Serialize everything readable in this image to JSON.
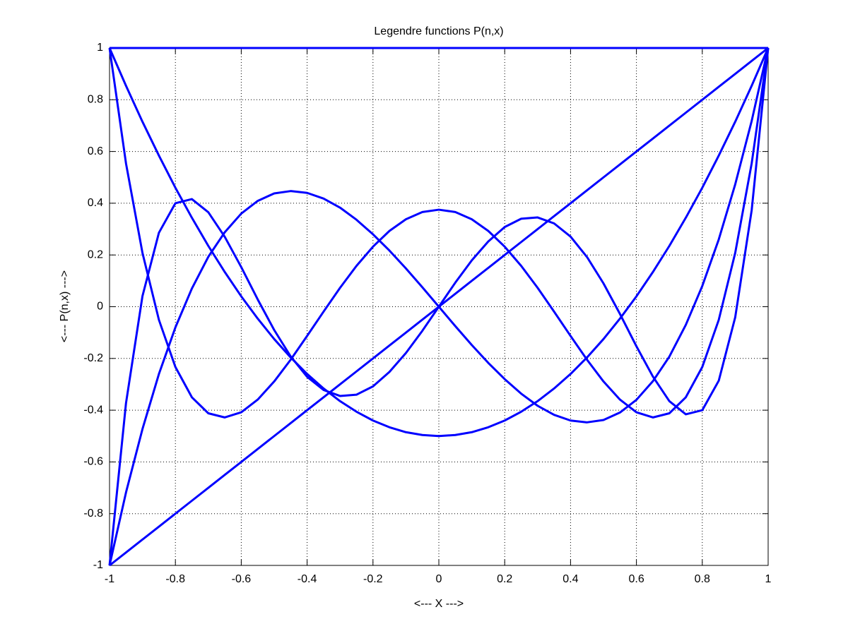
{
  "chart_data": {
    "type": "line",
    "title": "Legendre functions P(n,x)",
    "x_label": "<--- X --->",
    "y_label": "<--- P(n,x) --->",
    "x": [
      -1,
      -0.95,
      -0.9,
      -0.85,
      -0.8,
      -0.75,
      -0.7,
      -0.65,
      -0.6,
      -0.55,
      -0.5,
      -0.45,
      -0.4,
      -0.35,
      -0.3,
      -0.25,
      -0.2,
      -0.15,
      -0.1,
      -0.05,
      0,
      0.05,
      0.1,
      0.15,
      0.2,
      0.25,
      0.3,
      0.35,
      0.4,
      0.45,
      0.5,
      0.55,
      0.6,
      0.65,
      0.7,
      0.75,
      0.8,
      0.85,
      0.9,
      0.95,
      1
    ],
    "series": [
      {
        "color": "#0000ff",
        "values": [
          1,
          1,
          1,
          1,
          1,
          1,
          1,
          1,
          1,
          1,
          1,
          1,
          1,
          1,
          1,
          1,
          1,
          1,
          1,
          1,
          1,
          1,
          1,
          1,
          1,
          1,
          1,
          1,
          1,
          1,
          1,
          1,
          1,
          1,
          1,
          1,
          1,
          1,
          1,
          1,
          1
        ]
      },
      {
        "color": "#0000ff",
        "values": [
          -1,
          -0.95,
          -0.9,
          -0.85,
          -0.8,
          -0.75,
          -0.7,
          -0.65,
          -0.6,
          -0.55,
          -0.5,
          -0.45,
          -0.4,
          -0.35,
          -0.3,
          -0.25,
          -0.2,
          -0.15,
          -0.1,
          -0.05,
          0,
          0.05,
          0.1,
          0.15,
          0.2,
          0.25,
          0.3,
          0.35,
          0.4,
          0.45,
          0.5,
          0.55,
          0.6,
          0.65,
          0.7,
          0.75,
          0.8,
          0.85,
          0.9,
          0.95,
          1
        ]
      },
      {
        "color": "#0000ff",
        "values": [
          1,
          0.854,
          0.715,
          0.584,
          0.46,
          0.344,
          0.235,
          0.134,
          0.04,
          -0.046,
          -0.125,
          -0.196,
          -0.26,
          -0.316,
          -0.365,
          -0.406,
          -0.44,
          -0.466,
          -0.485,
          -0.496,
          -0.5,
          -0.496,
          -0.485,
          -0.466,
          -0.44,
          -0.406,
          -0.365,
          -0.316,
          -0.26,
          -0.196,
          -0.125,
          -0.046,
          0.04,
          0.134,
          0.235,
          0.344,
          0.46,
          0.584,
          0.715,
          0.854,
          1
        ]
      },
      {
        "color": "#0000ff",
        "values": [
          -1,
          -0.718,
          -0.473,
          -0.26,
          -0.08,
          0.07,
          0.193,
          0.288,
          0.36,
          0.409,
          0.438,
          0.447,
          0.44,
          0.418,
          0.383,
          0.336,
          0.28,
          0.217,
          0.148,
          0.075,
          0,
          -0.075,
          -0.148,
          -0.217,
          -0.28,
          -0.336,
          -0.383,
          -0.418,
          -0.44,
          -0.447,
          -0.438,
          -0.409,
          -0.36,
          -0.288,
          -0.193,
          -0.07,
          0.08,
          0.26,
          0.473,
          0.718,
          1
        ]
      },
      {
        "color": "#0000ff",
        "values": [
          1,
          0.554,
          0.208,
          -0.051,
          -0.233,
          -0.35,
          -0.412,
          -0.428,
          -0.408,
          -0.359,
          -0.289,
          -0.205,
          -0.113,
          -0.019,
          0.073,
          0.158,
          0.232,
          0.293,
          0.338,
          0.366,
          0.375,
          0.366,
          0.338,
          0.293,
          0.232,
          0.158,
          0.073,
          -0.019,
          -0.113,
          -0.205,
          -0.289,
          -0.359,
          -0.408,
          -0.428,
          -0.412,
          -0.35,
          -0.233,
          -0.051,
          0.208,
          0.554,
          1
        ]
      },
      {
        "color": "#0000ff",
        "values": [
          -1,
          -0.373,
          0.041,
          0.286,
          0.4,
          0.416,
          0.365,
          0.27,
          0.153,
          0.028,
          -0.09,
          -0.192,
          -0.271,
          -0.322,
          -0.345,
          -0.34,
          -0.308,
          -0.252,
          -0.179,
          -0.093,
          0,
          0.093,
          0.179,
          0.252,
          0.308,
          0.34,
          0.345,
          0.322,
          0.271,
          0.192,
          0.09,
          -0.028,
          -0.153,
          -0.27,
          -0.365,
          -0.416,
          -0.4,
          -0.286,
          -0.041,
          0.373,
          1
        ]
      }
    ],
    "xlim": [
      -1,
      1
    ],
    "xticks": [
      -1,
      -0.8,
      -0.6,
      -0.4,
      -0.2,
      0,
      0.2,
      0.4,
      0.6,
      0.8,
      1
    ],
    "ylim": [
      -1,
      1
    ],
    "yticks": [
      -1,
      -0.8,
      -0.6,
      -0.4,
      -0.2,
      0,
      0.2,
      0.4,
      0.6,
      0.8,
      1
    ],
    "grid": true
  }
}
